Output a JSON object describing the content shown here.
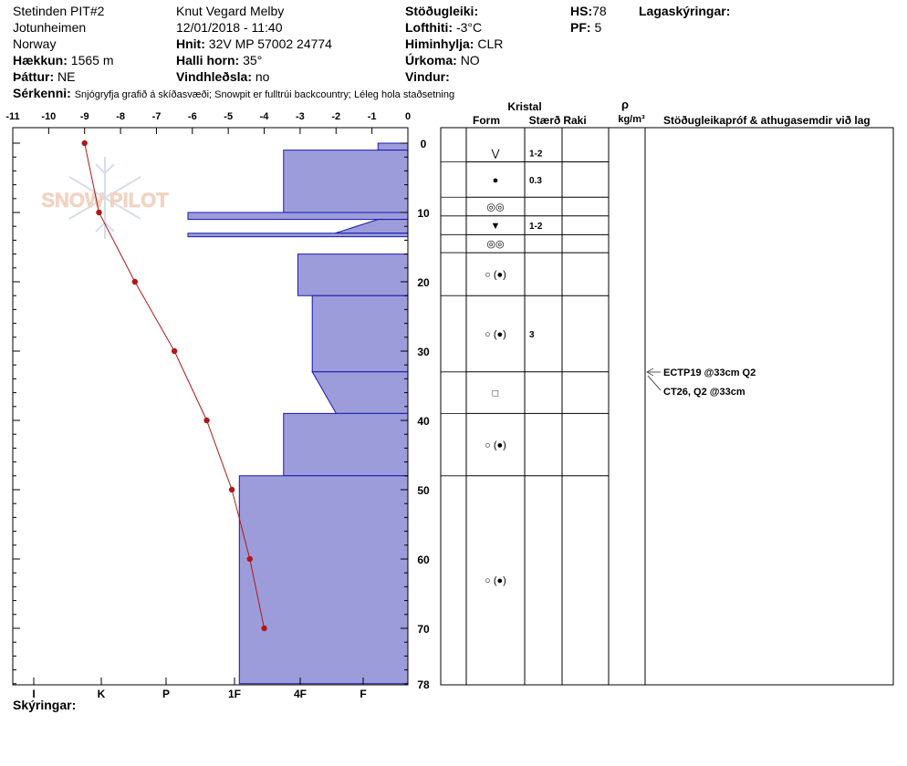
{
  "header": {
    "col1": {
      "site": "Stetinden PIT#2",
      "area": "Jotunheimen",
      "country": "Norway",
      "elevation_label": "Hækkun:",
      "elevation_value": "1565 m",
      "aspect_label": "Þáttur:",
      "aspect_value": "NE"
    },
    "col2": {
      "observer": "Knut Vegard Melby",
      "datetime": "12/01/2018 - 11:40",
      "coords_label": "Hnit:",
      "coords_value": "32V MP 57002 24774",
      "slope_label": "Halli horn:",
      "slope_value": "35°",
      "wind_load_label": "Vindhleðsla:",
      "wind_load_value": "no"
    },
    "col3": {
      "stability_label": "Stöðugleiki:",
      "airtemp_label": "Lofthiti:",
      "airtemp_value": "-3°C",
      "sky_label": "Himinhylja:",
      "sky_value": "CLR",
      "precip_label": "Úrkoma:",
      "precip_value": "NO",
      "wind_label": "Vindur:"
    },
    "col4": {
      "hs_label": "HS:",
      "hs_value": "78",
      "pf_label": "PF:",
      "pf_value": "5"
    },
    "layer_notes_label": "Lagaskýringar:",
    "features_label": "Sérkenni:",
    "features_value": "Snjógryfja grafið á skíðasvæði; Snowpit er fulltrúi backcountry; Léleg hola staðsetning"
  },
  "footer": {
    "notes_label": "Skýringar:"
  },
  "watermark": "SNOW PILOT",
  "table": {
    "crystal_label": "Kristal",
    "form_label": "Form",
    "size_label": "Stærð",
    "moisture_label": "Raki",
    "density_symbol": "ρ",
    "density_unit": "kg/m³",
    "comments_label": "Stöðugleikapróf & athugasemdir við lag",
    "rows": [
      {
        "form": "⋁",
        "size": "1-2"
      },
      {
        "form": "●",
        "size": "0.3"
      },
      {
        "form": "◎◎",
        "size": ""
      },
      {
        "form": "▼",
        "size": "1-2"
      },
      {
        "form": "◎◎",
        "size": ""
      },
      {
        "form": "○ (●)",
        "size": ""
      },
      {
        "form": "○ (●)",
        "size": "3"
      },
      {
        "form": "□",
        "size": ""
      },
      {
        "form": "○ (●)",
        "size": ""
      },
      {
        "form": "○ (●)",
        "size": ""
      }
    ],
    "tests": [
      "ECTP19 @33cm  Q2",
      "CT26, Q2 @33cm"
    ]
  },
  "chart_data": {
    "type": "bar",
    "temperature": {
      "axis_ticks": [
        "-11",
        "-10",
        "-9",
        "-8",
        "-7",
        "-6",
        "-5",
        "-4",
        "-3",
        "-2",
        "-1",
        "0"
      ],
      "xlim": [
        -11,
        0
      ],
      "depth_cm": [
        0,
        10,
        20,
        30,
        40,
        50,
        60,
        70
      ],
      "temp_c": [
        -9.0,
        -8.6,
        -7.6,
        -6.5,
        -5.6,
        -4.9,
        -4.4,
        -4.0
      ]
    },
    "hardness": {
      "axis_ticks": [
        "I",
        "K",
        "P",
        "1F",
        "4F",
        "F"
      ],
      "layers": [
        {
          "top": 0,
          "bottom": 1,
          "hardness_top": 1.25,
          "hardness_bottom": 1.25
        },
        {
          "top": 1,
          "bottom": 10,
          "hardness_top": 5.2,
          "hardness_bottom": 5.2
        },
        {
          "top": 10,
          "bottom": 11,
          "hardness_top": 9.2,
          "hardness_bottom": 9.2
        },
        {
          "top": 11,
          "bottom": 13,
          "hardness_top": 1.25,
          "hardness_bottom": 3.05
        },
        {
          "top": 13,
          "bottom": 13.5,
          "hardness_top": 9.2,
          "hardness_bottom": 9.2
        },
        {
          "top": 16,
          "bottom": 22,
          "hardness_top": 4.6,
          "hardness_bottom": 4.6
        },
        {
          "top": 22,
          "bottom": 33,
          "hardness_top": 4.0,
          "hardness_bottom": 4.0
        },
        {
          "top": 33,
          "bottom": 39,
          "hardness_top": 4.0,
          "hardness_bottom": 3.0
        },
        {
          "top": 39,
          "bottom": 48,
          "hardness_top": 5.2,
          "hardness_bottom": 5.2
        },
        {
          "top": 48,
          "bottom": 78,
          "hardness_top": 7.05,
          "hardness_bottom": 7.05
        }
      ]
    },
    "depth": {
      "ticks": [
        "0",
        "10",
        "20",
        "30",
        "40",
        "50",
        "60",
        "70",
        "78"
      ],
      "ylim": [
        0,
        78
      ]
    },
    "table_boundaries_cm": [
      0,
      2.7,
      7.8,
      10.5,
      13.2,
      15.8,
      22.0,
      33.0,
      39.0,
      48.0,
      78.0
    ],
    "test_depth_cm": 33,
    "colors": {
      "fill": "#9C9CDA",
      "outline": "#1818B0",
      "temp": "#B01818",
      "grid": "#000000"
    }
  }
}
